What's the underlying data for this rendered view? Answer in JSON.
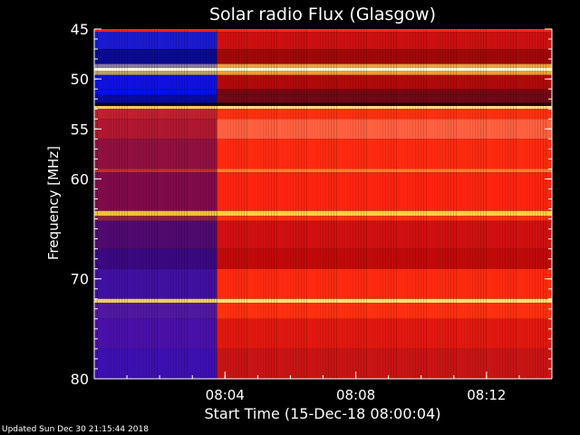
{
  "chart_data": {
    "type": "heatmap",
    "title": "Solar radio Flux (Glasgow)",
    "xlabel": "Start Time (15-Dec-18 08:00:04)",
    "ylabel": "Frequency [MHz]",
    "x_range_minutes": [
      0,
      14
    ],
    "xticks": [
      {
        "label": "08:04",
        "value": 4
      },
      {
        "label": "08:08",
        "value": 8
      },
      {
        "label": "08:12",
        "value": 12
      }
    ],
    "ylim": [
      45,
      80
    ],
    "y_inverted": true,
    "yticks": [
      45,
      50,
      55,
      60,
      70,
      80
    ],
    "onset_time": "08:03:45",
    "bands": [
      {
        "from": 45.0,
        "to": 45.3,
        "pre": "#ff2020",
        "post": "#ff2a1a"
      },
      {
        "from": 45.3,
        "to": 47.0,
        "pre": "#1a1ad0",
        "post": "#cc1010"
      },
      {
        "from": 47.0,
        "to": 48.5,
        "pre": "#0a0a90",
        "post": "#a00808"
      },
      {
        "from": 48.5,
        "to": 48.9,
        "pre": "#8a7aa0",
        "post": "#f0a040"
      },
      {
        "from": 48.9,
        "to": 49.2,
        "pre": "#ffffe0",
        "post": "#ffffd0"
      },
      {
        "from": 49.2,
        "to": 49.6,
        "pre": "#c0a060",
        "post": "#f0a030"
      },
      {
        "from": 49.6,
        "to": 51.0,
        "pre": "#1010e0",
        "post": "#b00a0a"
      },
      {
        "from": 51.0,
        "to": 51.6,
        "pre": "#0010f0",
        "post": "#7a0510"
      },
      {
        "from": 51.6,
        "to": 52.4,
        "pre": "#0a0aa0",
        "post": "#700818"
      },
      {
        "from": 52.4,
        "to": 52.7,
        "pre": "#000030",
        "post": "#200000"
      },
      {
        "from": 52.7,
        "to": 53.0,
        "pre": "#ffcc60",
        "post": "#ffe080"
      },
      {
        "from": 53.0,
        "to": 54.0,
        "pre": "#c02030",
        "post": "#ff3010"
      },
      {
        "from": 54.0,
        "to": 56.0,
        "pre": "#b01830",
        "post": "#ff6040"
      },
      {
        "from": 56.0,
        "to": 59.0,
        "pre": "#901040",
        "post": "#ff2a10"
      },
      {
        "from": 59.0,
        "to": 59.35,
        "pre": "#c03030",
        "post": "#ff8030"
      },
      {
        "from": 59.35,
        "to": 63.2,
        "pre": "#800a4a",
        "post": "#ff2410"
      },
      {
        "from": 63.2,
        "to": 63.7,
        "pre": "#f0c040",
        "post": "#ffd040"
      },
      {
        "from": 63.7,
        "to": 64.2,
        "pre": "#902040",
        "post": "#ff3010"
      },
      {
        "from": 64.2,
        "to": 67.0,
        "pre": "#500a70",
        "post": "#d01010"
      },
      {
        "from": 67.0,
        "to": 69.0,
        "pre": "#3a0880",
        "post": "#c00a0a"
      },
      {
        "from": 69.0,
        "to": 72.0,
        "pre": "#4010a0",
        "post": "#ff2a10"
      },
      {
        "from": 72.0,
        "to": 72.4,
        "pre": "#f0d060",
        "post": "#ffe070"
      },
      {
        "from": 72.4,
        "to": 74.0,
        "pre": "#5018a0",
        "post": "#ff3010"
      },
      {
        "from": 74.0,
        "to": 77.0,
        "pre": "#4a10a8",
        "post": "#e01810"
      },
      {
        "from": 77.0,
        "to": 80.0,
        "pre": "#3c10b0",
        "post": "#c81414"
      }
    ]
  },
  "footer": {
    "updated": "Updated Sun Dec 30 21:15:44 2018"
  }
}
